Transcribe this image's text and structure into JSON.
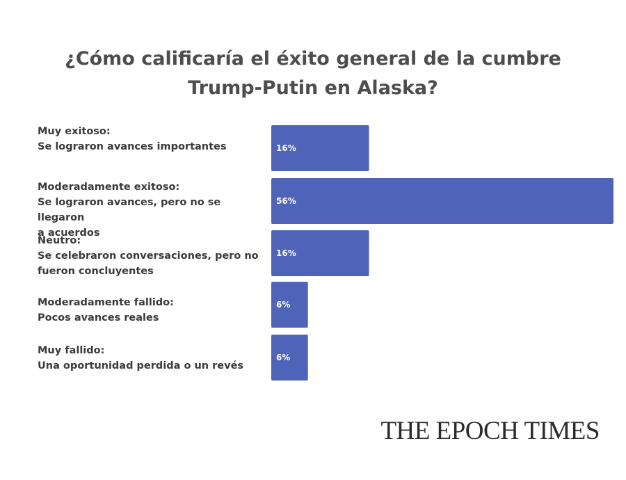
{
  "title_lines": [
    "¿Cómo calificaría el éxito general de la cumbre",
    "Trump-Putin en Alaska?"
  ],
  "categories": [
    {
      "lines": [
        "Muy exitoso:",
        "Se lograron avances importantes"
      ]
    },
    {
      "lines": [
        "Moderadamente exitoso:",
        "Se lograron avances, pero no se llegaron",
        "a acuerdos"
      ]
    },
    {
      "lines": [
        "Neutro:",
        "Se celebraron conversaciones, pero no",
        "fueron concluyentes"
      ]
    },
    {
      "lines": [
        "Moderadamente fallido:",
        "Pocos avances reales"
      ]
    },
    {
      "lines": [
        "Muy fallido:",
        "Una oportunidad perdida o un revés"
      ]
    }
  ],
  "logo_text": "THE EPOCH TIMES",
  "colors": {
    "bar": "#4f63b8",
    "title": "#4d4d4d",
    "label": "#3a3a3a",
    "bar_text": "#ffffff"
  },
  "chart_data": {
    "type": "bar",
    "orientation": "horizontal",
    "title": "¿Cómo calificaría el éxito general de la cumbre Trump-Putin en Alaska?",
    "categories": [
      "Muy exitoso: Se lograron avances importantes",
      "Moderadamente exitoso: Se lograron avances, pero no se llegaron a acuerdos",
      "Neutro: Se celebraron conversaciones, pero no fueron concluyentes",
      "Moderadamente fallido: Pocos avances reales",
      "Muy fallido: Una oportunidad perdida o un revés"
    ],
    "values": [
      16,
      56,
      16,
      6,
      6
    ],
    "value_labels": [
      "16%",
      "56%",
      "16%",
      "6%",
      "6%"
    ],
    "unit": "%",
    "xlim": [
      0,
      56
    ],
    "grid": false,
    "legend": false
  }
}
